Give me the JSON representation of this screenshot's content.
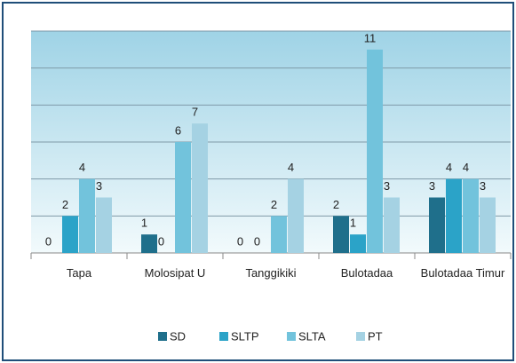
{
  "chart_data": {
    "type": "bar",
    "categories": [
      "Tapa",
      "Molosipat U",
      "Tanggikiki",
      "Bulotadaa",
      "Bulotadaa Timur"
    ],
    "series": [
      {
        "name": "SD",
        "color": "#1f6f8b",
        "values": [
          0,
          1,
          0,
          2,
          3
        ]
      },
      {
        "name": "SLTP",
        "color": "#2ba3c8",
        "values": [
          2,
          0,
          0,
          1,
          4
        ]
      },
      {
        "name": "SLTA",
        "color": "#72c3dc",
        "values": [
          4,
          6,
          2,
          11,
          4
        ]
      },
      {
        "name": "PT",
        "color": "#a5d2e3",
        "values": [
          3,
          7,
          4,
          3,
          3
        ]
      }
    ],
    "ylim": [
      0,
      12
    ],
    "yticks": [
      0,
      2,
      4,
      6,
      8,
      10,
      12
    ],
    "grid": true,
    "legend": "bottom"
  }
}
